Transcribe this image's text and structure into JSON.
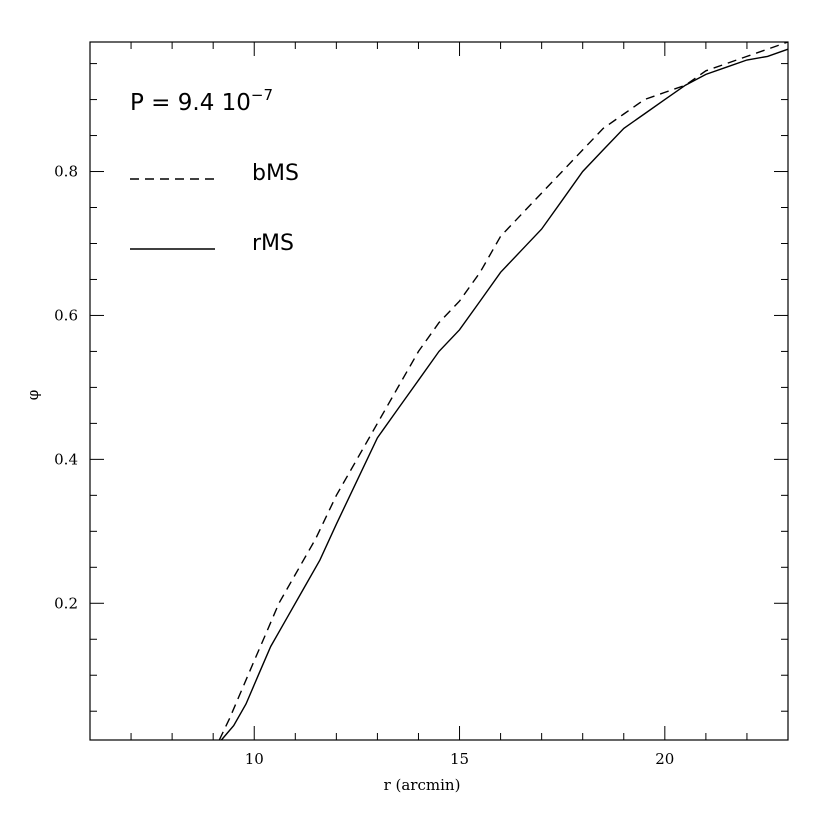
{
  "chart_data": {
    "type": "line",
    "xlabel": "r (arcmin)",
    "ylabel": "φ",
    "xlim": [
      6,
      23
    ],
    "ylim": [
      0.01,
      0.98
    ],
    "xticks_major": [
      10,
      15,
      20
    ],
    "yticks_major": [
      0.2,
      0.4,
      0.6,
      0.8
    ],
    "x_minor_step": 1,
    "y_minor_step": 0.05,
    "grid": false,
    "legend_placement": "top-left",
    "annotation": {
      "main": "P  =  9.4  10",
      "exponent": "−7"
    },
    "series": [
      {
        "name": "bMS",
        "style": "dashed",
        "color": "#000000",
        "x": [
          9.15,
          9.4,
          9.7,
          10.0,
          10.3,
          10.6,
          11.0,
          11.5,
          12.0,
          12.5,
          13.0,
          13.5,
          14.0,
          14.5,
          15.0,
          15.5,
          16.0,
          16.5,
          17.0,
          17.5,
          18.0,
          18.5,
          19.0,
          19.5,
          20.0,
          20.5,
          21.0,
          21.5,
          22.0,
          22.5,
          23.0
        ],
        "y": [
          0.01,
          0.04,
          0.08,
          0.12,
          0.16,
          0.2,
          0.24,
          0.29,
          0.35,
          0.4,
          0.45,
          0.5,
          0.55,
          0.59,
          0.62,
          0.66,
          0.71,
          0.74,
          0.77,
          0.8,
          0.83,
          0.86,
          0.88,
          0.9,
          0.91,
          0.92,
          0.94,
          0.95,
          0.96,
          0.97,
          0.98
        ]
      },
      {
        "name": "rMS",
        "style": "solid",
        "color": "#000000",
        "x": [
          9.2,
          9.5,
          9.8,
          10.1,
          10.4,
          10.8,
          11.2,
          11.6,
          12.0,
          12.5,
          13.0,
          13.5,
          14.0,
          14.5,
          15.0,
          15.5,
          16.0,
          16.5,
          17.0,
          17.5,
          18.0,
          18.5,
          19.0,
          19.5,
          20.0,
          20.5,
          21.0,
          21.5,
          22.0,
          22.5,
          23.0
        ],
        "y": [
          0.01,
          0.03,
          0.06,
          0.1,
          0.14,
          0.18,
          0.22,
          0.26,
          0.31,
          0.37,
          0.43,
          0.47,
          0.51,
          0.55,
          0.58,
          0.62,
          0.66,
          0.69,
          0.72,
          0.76,
          0.8,
          0.83,
          0.86,
          0.88,
          0.9,
          0.92,
          0.935,
          0.945,
          0.955,
          0.96,
          0.97
        ]
      }
    ]
  }
}
